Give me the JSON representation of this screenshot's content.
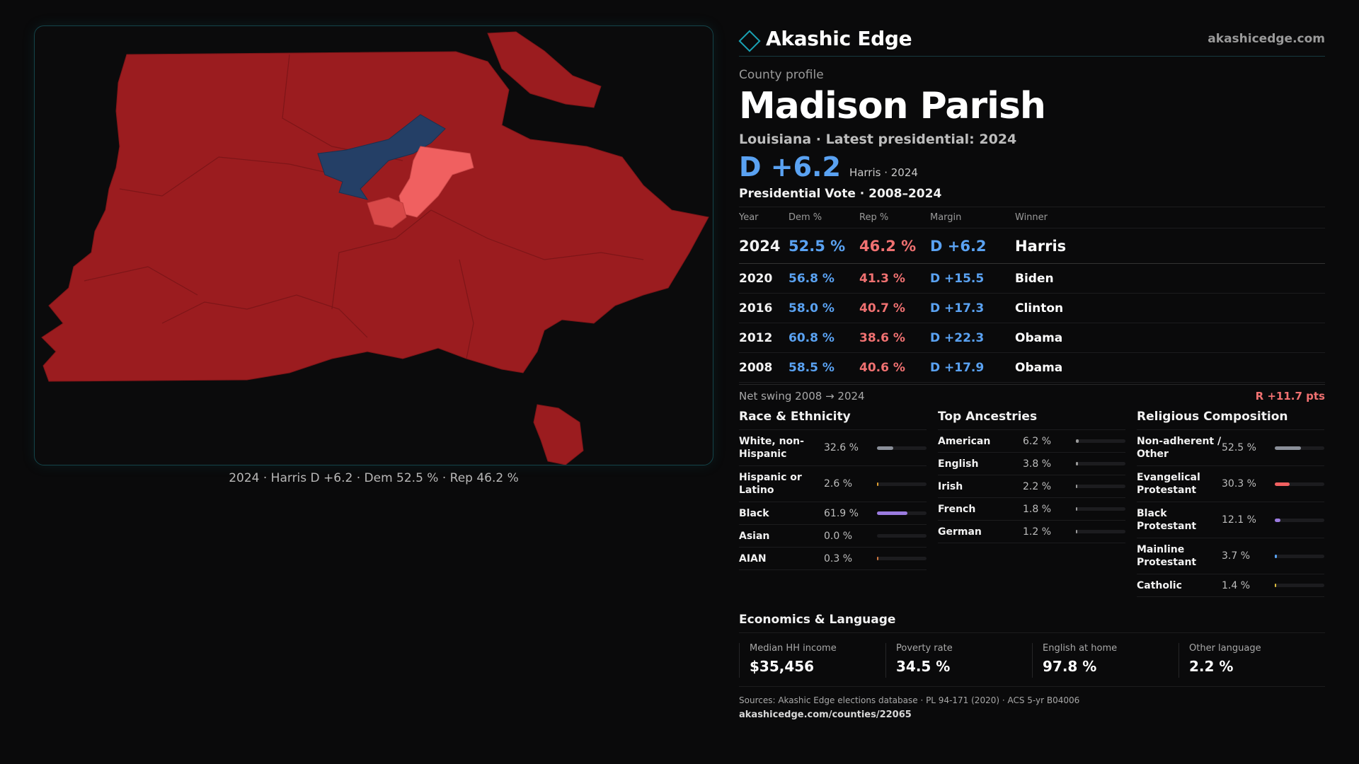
{
  "brand": {
    "name": "Akashic Edge",
    "url": "akashicedge.com",
    "accent": "#1aa2b4"
  },
  "profile": {
    "label": "County profile",
    "county": "Madison Parish",
    "subtitle": "Louisiana · Latest presidential: 2024",
    "headline_margin": "D +6.2",
    "headline_note": "Harris · 2024"
  },
  "map": {
    "caption": "2024 · Harris D +6.2 · Dem 52.5 % · Rep 46.2 %",
    "colors": {
      "rep": "#9b1c1f",
      "dem": "#243f66",
      "lean_rep": "#f06060",
      "border": "#7e1518"
    }
  },
  "presidential": {
    "title": "Presidential Vote · 2008–2024",
    "headers": [
      "Year",
      "Dem %",
      "Rep %",
      "Margin",
      "Winner"
    ],
    "rows": [
      {
        "year": "2024",
        "dem": "52.5 %",
        "rep": "46.2 %",
        "margin": "D +6.2",
        "winner": "Harris"
      },
      {
        "year": "2020",
        "dem": "56.8 %",
        "rep": "41.3 %",
        "margin": "D +15.5",
        "winner": "Biden"
      },
      {
        "year": "2016",
        "dem": "58.0 %",
        "rep": "40.7 %",
        "margin": "D +17.3",
        "winner": "Clinton"
      },
      {
        "year": "2012",
        "dem": "60.8 %",
        "rep": "38.6 %",
        "margin": "D +22.3",
        "winner": "Obama"
      },
      {
        "year": "2008",
        "dem": "58.5 %",
        "rep": "40.6 %",
        "margin": "D +17.9",
        "winner": "Obama"
      }
    ],
    "swing_label": "Net swing 2008 → 2024",
    "swing_value": "R +11.7 pts"
  },
  "race": {
    "title": "Race & Ethnicity",
    "items": [
      {
        "label": "White, non-Hispanic",
        "pct": "32.6 %",
        "value": 32.6,
        "color": "#8a8f99"
      },
      {
        "label": "Hispanic or Latino",
        "pct": "2.6 %",
        "value": 2.6,
        "color": "#e0a030"
      },
      {
        "label": "Black",
        "pct": "61.9 %",
        "value": 61.9,
        "color": "#9b7be0"
      },
      {
        "label": "Asian",
        "pct": "0.0 %",
        "value": 0.0,
        "color": "#3fb6a6"
      },
      {
        "label": "AIAN",
        "pct": "0.3 %",
        "value": 0.3,
        "color": "#d07840"
      }
    ]
  },
  "ancestry": {
    "title": "Top Ancestries",
    "items": [
      {
        "label": "American",
        "pct": "6.2 %",
        "value": 6.2,
        "color": "#9a9a9a"
      },
      {
        "label": "English",
        "pct": "3.8 %",
        "value": 3.8,
        "color": "#9a9a9a"
      },
      {
        "label": "Irish",
        "pct": "2.2 %",
        "value": 2.2,
        "color": "#9a9a9a"
      },
      {
        "label": "French",
        "pct": "1.8 %",
        "value": 1.8,
        "color": "#9a9a9a"
      },
      {
        "label": "German",
        "pct": "1.2 %",
        "value": 1.2,
        "color": "#9a9a9a"
      }
    ]
  },
  "religion": {
    "title": "Religious Composition",
    "items": [
      {
        "label": "Non-adherent / Other",
        "pct": "52.5 %",
        "value": 52.5,
        "color": "#8a8f99"
      },
      {
        "label": "Evangelical Protestant",
        "pct": "30.3 %",
        "value": 30.3,
        "color": "#f06060"
      },
      {
        "label": "Black Protestant",
        "pct": "12.1 %",
        "value": 12.1,
        "color": "#9b7be0"
      },
      {
        "label": "Mainline Protestant",
        "pct": "3.7 %",
        "value": 3.7,
        "color": "#5aa2f2"
      },
      {
        "label": "Catholic",
        "pct": "1.4 %",
        "value": 1.4,
        "color": "#e0c040"
      }
    ]
  },
  "economics": {
    "title": "Economics & Language",
    "items": [
      {
        "label": "Median HH income",
        "value": "$35,456"
      },
      {
        "label": "Poverty rate",
        "value": "34.5 %"
      },
      {
        "label": "English at home",
        "value": "97.8 %"
      },
      {
        "label": "Other language",
        "value": "2.2 %"
      }
    ]
  },
  "sources": {
    "text": "Sources: Akashic Edge elections database · PL 94-171 (2020) · ACS 5-yr B04006",
    "url": "akashicedge.com/counties/22065"
  }
}
